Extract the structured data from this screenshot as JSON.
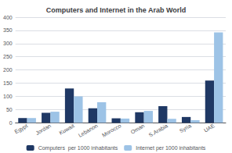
{
  "chart_data": {
    "type": "bar",
    "title": "Computers and Internet in the Arab World",
    "categories": [
      "Egypt",
      "Jordan",
      "Kuwait",
      "Lebanon",
      "Morocco",
      "Oman",
      "S.Arabia",
      "Syria",
      "UAE"
    ],
    "series": [
      {
        "name": "Computers  per 1000 inhabitants",
        "color": "#1F3864",
        "values": [
          18,
          38,
          130,
          55,
          17,
          40,
          63,
          22,
          160
        ]
      },
      {
        "name": "Internet per 1000 inhabitants",
        "color": "#9DC3E6",
        "values": [
          18,
          42,
          100,
          78,
          16,
          45,
          15,
          10,
          342
        ]
      }
    ],
    "ylim": [
      0,
      400
    ],
    "yticks": [
      0,
      50,
      100,
      150,
      200,
      250,
      300,
      350,
      400
    ],
    "grid": true,
    "legend": "bottom"
  }
}
